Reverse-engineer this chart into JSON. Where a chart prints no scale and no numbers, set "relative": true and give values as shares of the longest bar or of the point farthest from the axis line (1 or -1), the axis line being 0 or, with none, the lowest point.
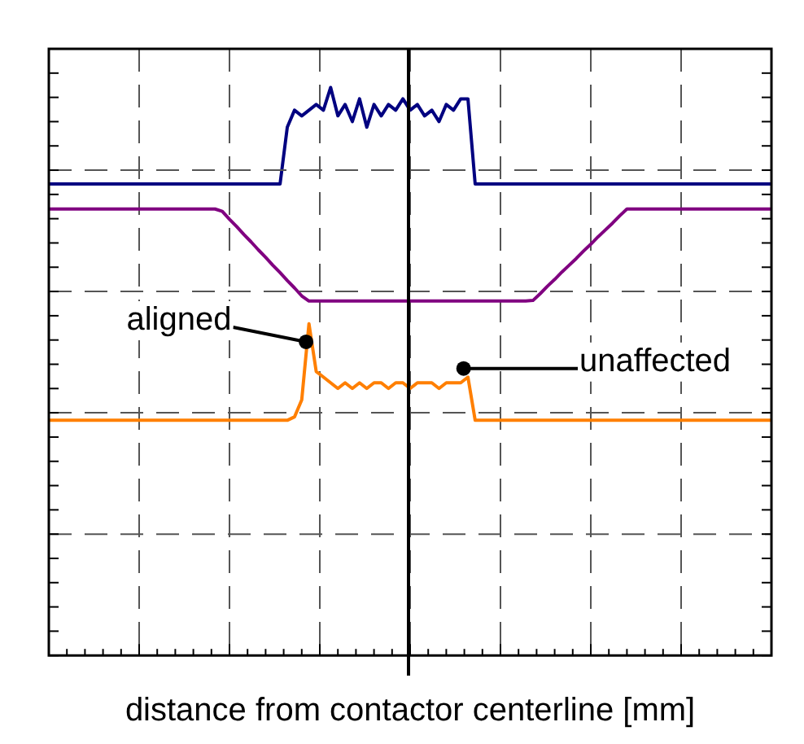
{
  "chart_data": {
    "type": "line",
    "relative": true,
    "xlabel": "distance from contactor centerline [mm]",
    "grid": true,
    "legend": false,
    "marker": "none",
    "line_style": "solid",
    "categories": [
      null,
      null,
      null,
      null,
      null,
      null,
      null,
      null,
      null,
      null,
      null,
      null,
      null,
      null,
      null,
      null,
      null,
      null,
      null,
      null,
      null,
      null,
      null,
      null,
      null,
      null,
      null,
      null,
      null,
      null,
      null,
      null,
      null,
      null,
      null,
      null,
      null,
      null,
      null,
      null,
      null,
      null,
      null,
      null,
      null,
      null,
      null,
      null,
      null,
      null,
      null,
      null,
      null,
      null,
      null,
      null,
      null,
      null,
      null,
      null,
      null,
      null,
      null,
      null,
      null,
      null,
      null,
      null,
      null,
      null,
      null,
      null,
      null,
      null,
      null,
      null,
      null,
      null,
      null,
      null,
      null,
      null,
      null,
      null,
      null,
      null,
      null,
      null,
      null,
      null,
      null,
      null,
      null,
      null,
      null,
      null,
      null,
      null,
      null,
      null,
      null
    ],
    "series": [
      {
        "color": "#000080",
        "values": [
          0.83,
          0.83,
          0.83,
          0.83,
          0.83,
          0.83,
          0.83,
          0.83,
          0.83,
          0.83,
          0.83,
          0.83,
          0.83,
          0.83,
          0.83,
          0.83,
          0.83,
          0.83,
          0.83,
          0.83,
          0.83,
          0.83,
          0.83,
          0.83,
          0.83,
          0.83,
          0.83,
          0.83,
          0.83,
          0.83,
          0.83,
          0.83,
          0.83,
          0.93,
          0.96,
          0.95,
          0.96,
          0.97,
          0.96,
          1,
          0.95,
          0.97,
          0.94,
          0.98,
          0.93,
          0.97,
          0.95,
          0.97,
          0.96,
          0.98,
          0.96,
          0.97,
          0.95,
          0.96,
          0.94,
          0.97,
          0.96,
          0.98,
          0.98,
          0.83,
          0.83,
          0.83,
          0.83,
          0.83,
          0.83,
          0.83,
          0.83,
          0.83,
          0.83,
          0.83,
          0.83,
          0.83,
          0.83,
          0.83,
          0.83,
          0.83,
          0.83,
          0.83,
          0.83,
          0.83,
          0.83,
          0.83,
          0.83,
          0.83,
          0.83,
          0.83,
          0.83,
          0.83,
          0.83,
          0.83,
          0.83,
          0.83,
          0.83,
          0.83,
          0.83,
          0.83,
          0.83,
          0.83,
          0.83,
          0.83,
          0.83
        ]
      },
      {
        "color": "#800080",
        "values": [
          0.786,
          0.786,
          0.786,
          0.786,
          0.786,
          0.786,
          0.786,
          0.786,
          0.786,
          0.786,
          0.786,
          0.786,
          0.786,
          0.786,
          0.786,
          0.786,
          0.786,
          0.786,
          0.786,
          0.786,
          0.786,
          0.786,
          0.786,
          0.786,
          0.782,
          0.768,
          0.755,
          0.741,
          0.728,
          0.714,
          0.701,
          0.687,
          0.674,
          0.66,
          0.647,
          0.633,
          0.624,
          0.624,
          0.624,
          0.624,
          0.624,
          0.624,
          0.624,
          0.624,
          0.624,
          0.624,
          0.624,
          0.624,
          0.624,
          0.624,
          0.624,
          0.624,
          0.624,
          0.624,
          0.624,
          0.624,
          0.624,
          0.624,
          0.624,
          0.624,
          0.624,
          0.624,
          0.624,
          0.624,
          0.624,
          0.624,
          0.624,
          0.625,
          0.637,
          0.65,
          0.662,
          0.675,
          0.687,
          0.699,
          0.712,
          0.724,
          0.737,
          0.749,
          0.761,
          0.774,
          0.786,
          0.786,
          0.786,
          0.786,
          0.786,
          0.786,
          0.786,
          0.786,
          0.786,
          0.786,
          0.786,
          0.786,
          0.786,
          0.786,
          0.786,
          0.786,
          0.786,
          0.786,
          0.786,
          0.786,
          0.786
        ]
      },
      {
        "color": "#ff7f00",
        "values": [
          0.414,
          0.414,
          0.414,
          0.414,
          0.414,
          0.414,
          0.414,
          0.414,
          0.414,
          0.414,
          0.414,
          0.414,
          0.414,
          0.414,
          0.414,
          0.414,
          0.414,
          0.414,
          0.414,
          0.414,
          0.414,
          0.414,
          0.414,
          0.414,
          0.414,
          0.414,
          0.414,
          0.414,
          0.414,
          0.414,
          0.414,
          0.414,
          0.414,
          0.414,
          0.42,
          0.45,
          0.584,
          0.5,
          0.49,
          0.48,
          0.47,
          0.48,
          0.47,
          0.48,
          0.47,
          0.48,
          0.48,
          0.47,
          0.48,
          0.48,
          0.47,
          0.48,
          0.48,
          0.48,
          0.47,
          0.48,
          0.48,
          0.48,
          0.49,
          0.414,
          0.414,
          0.414,
          0.414,
          0.414,
          0.414,
          0.414,
          0.414,
          0.414,
          0.414,
          0.414,
          0.414,
          0.414,
          0.414,
          0.414,
          0.414,
          0.414,
          0.414,
          0.414,
          0.414,
          0.414,
          0.414,
          0.414,
          0.414,
          0.414,
          0.414,
          0.414,
          0.414,
          0.414,
          0.414,
          0.414,
          0.414,
          0.414,
          0.414,
          0.414,
          0.414,
          0.414,
          0.414,
          0.414,
          0.414,
          0.414,
          0.414
        ]
      }
    ],
    "annotations": [
      "aligned",
      "unaffected"
    ]
  }
}
